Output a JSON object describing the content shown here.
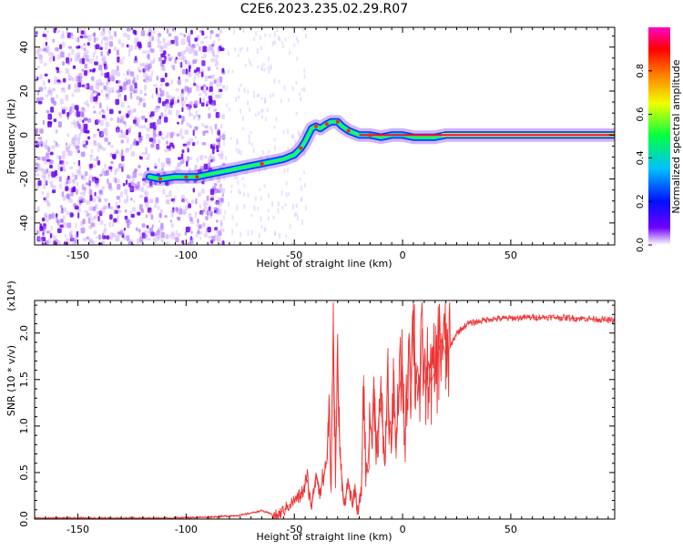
{
  "title": "C2E6.2023.235.02.29.R07",
  "chart_data": [
    {
      "type": "heatmap",
      "xlabel": "Height of straight line (km)",
      "ylabel": "Frequency (Hz)",
      "xlim": [
        -170,
        98
      ],
      "ylim": [
        -50,
        49
      ],
      "xticks": [
        -150,
        -100,
        -50,
        0,
        50
      ],
      "yticks": [
        -40,
        -20,
        0,
        20,
        40
      ],
      "trace": {
        "name": "Doppler trace",
        "x": [
          -117,
          -112,
          -105,
          -100,
          -95,
          -90,
          -85,
          -80,
          -75,
          -70,
          -65,
          -60,
          -55,
          -50,
          -47,
          -45,
          -42,
          -40,
          -38,
          -35,
          -33,
          -30,
          -28,
          -25,
          -20,
          -15,
          -10,
          -5,
          0,
          5,
          10,
          15,
          20,
          30,
          40,
          60,
          80,
          98
        ],
        "y": [
          -19,
          -20,
          -19,
          -19,
          -19,
          -18,
          -17,
          -16,
          -15,
          -14,
          -13,
          -12,
          -11,
          -9,
          -6,
          -3,
          3,
          4,
          3,
          5,
          6,
          6,
          4,
          2,
          0,
          0,
          -1,
          0,
          0,
          -1,
          -1,
          -1,
          0,
          0,
          0,
          0,
          0,
          0
        ]
      },
      "noise_region_x": [
        -170,
        -85
      ],
      "colorbar": {
        "label": "Normalized spectral amplitude",
        "ticks": [
          0.0,
          0.2,
          0.4,
          0.6,
          0.8
        ],
        "range": [
          0,
          1
        ],
        "colors": [
          "#ffffff",
          "#7000ff",
          "#0010ff",
          "#00c0ff",
          "#00ff40",
          "#f0ff00",
          "#ff8000",
          "#ff0000",
          "#ff00c8"
        ]
      }
    },
    {
      "type": "line",
      "xlabel": "Height of straight line (km)",
      "ylabel": "SNR (10 * v/v)",
      "exponent_label": "(x10⁴)",
      "xlim": [
        -170,
        98
      ],
      "ylim": [
        0,
        2.35
      ],
      "xticks": [
        -150,
        -100,
        -50,
        0,
        50
      ],
      "yticks": [
        0.0,
        0.5,
        1.0,
        1.5,
        2.0
      ],
      "color": "#ee3333",
      "series": [
        {
          "x": [
            -170,
            -140,
            -110,
            -90,
            -75,
            -65,
            -58,
            -50,
            -47,
            -44,
            -42,
            -40,
            -38,
            -35,
            -34,
            -33,
            -32,
            -31,
            -30,
            -29,
            -28,
            -27,
            -25,
            -23,
            -22,
            -21,
            -19,
            -18,
            -17,
            -16,
            -15,
            -14,
            -13,
            -12,
            -11,
            -10,
            -8,
            -7,
            -6,
            -5,
            -4,
            -3,
            -2,
            0,
            1,
            2,
            3,
            4,
            5,
            6,
            7,
            8,
            9,
            10,
            11,
            12,
            13,
            15,
            18,
            20,
            25,
            30,
            40,
            50,
            60,
            70,
            80,
            90,
            98
          ],
          "values": [
            0.01,
            0.01,
            0.01,
            0.02,
            0.04,
            0.09,
            0.03,
            0.2,
            0.25,
            0.42,
            0.12,
            0.5,
            0.3,
            0.62,
            1.25,
            0.28,
            2.1,
            0.5,
            1.7,
            0.7,
            0.45,
            0.15,
            0.4,
            0.12,
            0.38,
            0.05,
            0.3,
            1.55,
            0.45,
            0.6,
            1.05,
            0.9,
            1.4,
            0.7,
            1.1,
            1.2,
            0.6,
            1.55,
            1.0,
            0.8,
            1.6,
            0.65,
            1.3,
            1.65,
            0.8,
            1.3,
            2.0,
            1.45,
            2.32,
            1.45,
            1.65,
            1.25,
            2.05,
            1.5,
            1.4,
            1.7,
            1.45,
            1.6,
            1.95,
            1.75,
            2.0,
            2.1,
            2.15,
            2.16,
            2.17,
            2.17,
            2.16,
            2.15,
            2.13
          ]
        }
      ]
    }
  ]
}
